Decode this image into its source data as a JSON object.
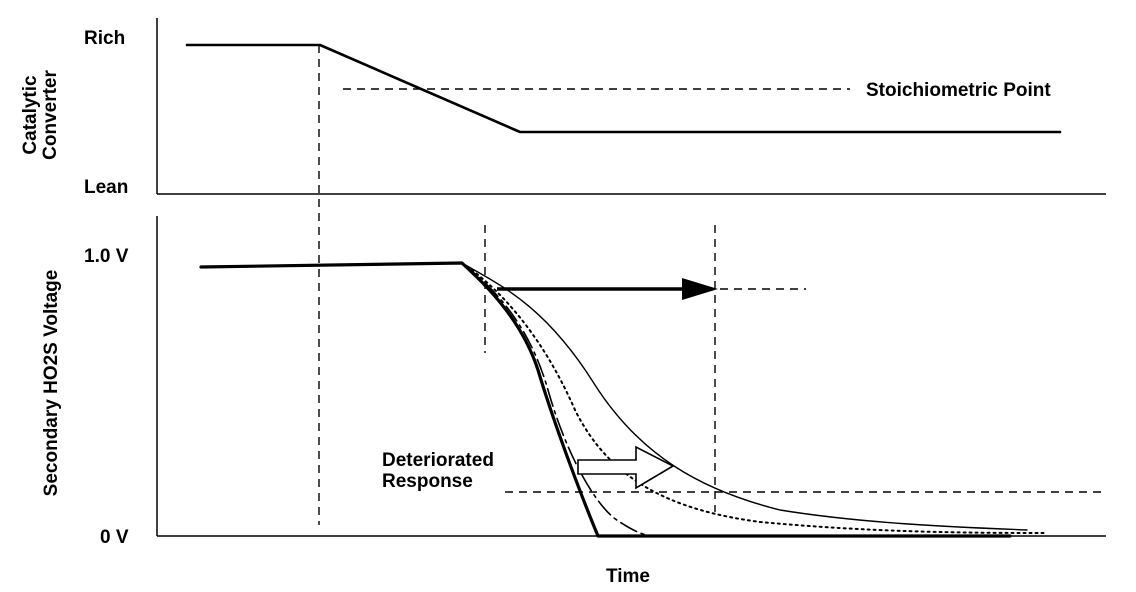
{
  "top_panel": {
    "axis_label_line1": "Catalytic",
    "axis_label_line2": "Converter",
    "y_high_label": "Rich",
    "y_low_label": "Lean",
    "reference_label": "Stoichiometric Point"
  },
  "bottom_panel": {
    "axis_label": "Secondary HO2S Voltage",
    "y_high_label": "1.0 V",
    "y_low_label": "0 V",
    "annotation_line1": "Deteriorated",
    "annotation_line2": "Response",
    "x_axis_label": "Time"
  }
}
